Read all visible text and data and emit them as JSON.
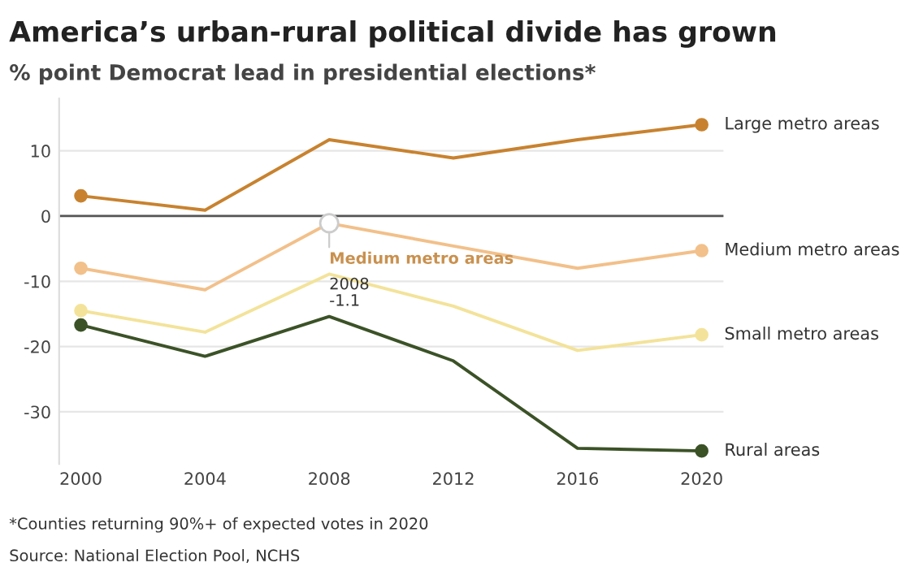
{
  "chart_data": {
    "type": "line",
    "title": "America’s urban-rural political divide has grown",
    "subtitle": "% point Democrat lead in presidential elections*",
    "x": [
      2000,
      2004,
      2008,
      2012,
      2016,
      2020
    ],
    "series": [
      {
        "name": "Large metro areas",
        "color": "#c8822f",
        "values": [
          3.1,
          0.9,
          11.7,
          8.9,
          11.7,
          14.0
        ]
      },
      {
        "name": "Medium metro areas",
        "color": "#f2c08a",
        "values": [
          -8.0,
          -11.3,
          -1.1,
          -4.6,
          -8.0,
          -5.3
        ]
      },
      {
        "name": "Small metro areas",
        "color": "#f3e39a",
        "values": [
          -14.5,
          -17.8,
          -8.9,
          -13.8,
          -20.6,
          -18.2
        ]
      },
      {
        "name": "Rural areas",
        "color": "#3b5227",
        "values": [
          -16.7,
          -21.5,
          -15.4,
          -22.2,
          -35.6,
          -36.0
        ]
      }
    ],
    "xlim": [
      1999.3,
      2020.7
    ],
    "xticks": [
      2000,
      2004,
      2008,
      2012,
      2016,
      2020
    ],
    "ylim": [
      -38,
      18
    ],
    "yticks": [
      {
        "value": -30,
        "label": "-30"
      },
      {
        "value": -20,
        "label": "-20"
      },
      {
        "value": -10,
        "label": "-10"
      },
      0,
      10
    ],
    "grid": "y",
    "legend": false,
    "line_style": "solid",
    "ref_lines": [
      {
        "axis": "y",
        "value": 0,
        "color": "#555555"
      }
    ],
    "annotations": [
      {
        "text": "Medium metro areas",
        "x": 2008,
        "y": -1.1
      },
      "2008\n-1.1",
      "*Counties returning 90%+ of expected votes in 2020",
      "Source: National Election Pool, NCHS"
    ]
  }
}
